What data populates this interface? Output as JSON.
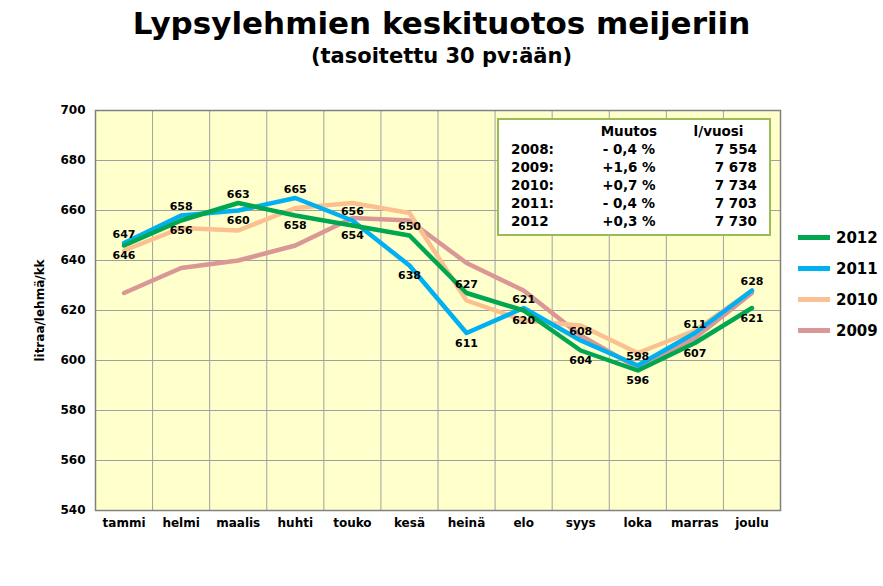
{
  "chart_data": {
    "type": "line",
    "title": "Lypsylehmien keskituotos meijeriin",
    "subtitle": "(tasoitettu 30 pv:ään)",
    "y_label": "litraa/lehmä/kk",
    "categories": [
      "tammi",
      "helmi",
      "maalis",
      "huhti",
      "touko",
      "kesä",
      "heinä",
      "elo",
      "syys",
      "loka",
      "marras",
      "joulu"
    ],
    "series": [
      {
        "name": "2012",
        "color": "#00a650",
        "data_labels": true,
        "values": [
          646,
          656,
          663,
          658,
          654,
          650,
          627,
          620,
          604,
          596,
          607,
          621
        ]
      },
      {
        "name": "2011",
        "color": "#00b0f0",
        "data_labels": true,
        "values": [
          647,
          658,
          660,
          665,
          656,
          638,
          611,
          621,
          608,
          598,
          611,
          628
        ]
      },
      {
        "name": "2010",
        "color": "#fac090",
        "data_labels": false,
        "values": [
          644,
          653,
          652,
          661,
          663,
          659,
          624,
          616,
          614,
          603,
          612,
          628
        ]
      },
      {
        "name": "2009",
        "color": "#d99795",
        "data_labels": false,
        "values": [
          627,
          637,
          640,
          646,
          657,
          656,
          639,
          628,
          610,
          597,
          609,
          627
        ]
      }
    ],
    "ylim": [
      540,
      700
    ],
    "yticks": [
      540,
      560,
      580,
      600,
      620,
      640,
      660,
      680,
      700
    ],
    "grid": true,
    "legend": "right",
    "inset_table": {
      "header": [
        "",
        "Muutos",
        "l/vuosi"
      ],
      "rows": [
        [
          "2008:",
          "- 0,4 %",
          "7 554"
        ],
        [
          "2009:",
          "+1,6 %",
          "7 678"
        ],
        [
          "2010:",
          "+0,7 %",
          "7 734"
        ],
        [
          "2011:",
          "- 0,4 %",
          "7 703"
        ],
        [
          "2012",
          "+0,3 %",
          "7 730"
        ]
      ]
    }
  }
}
